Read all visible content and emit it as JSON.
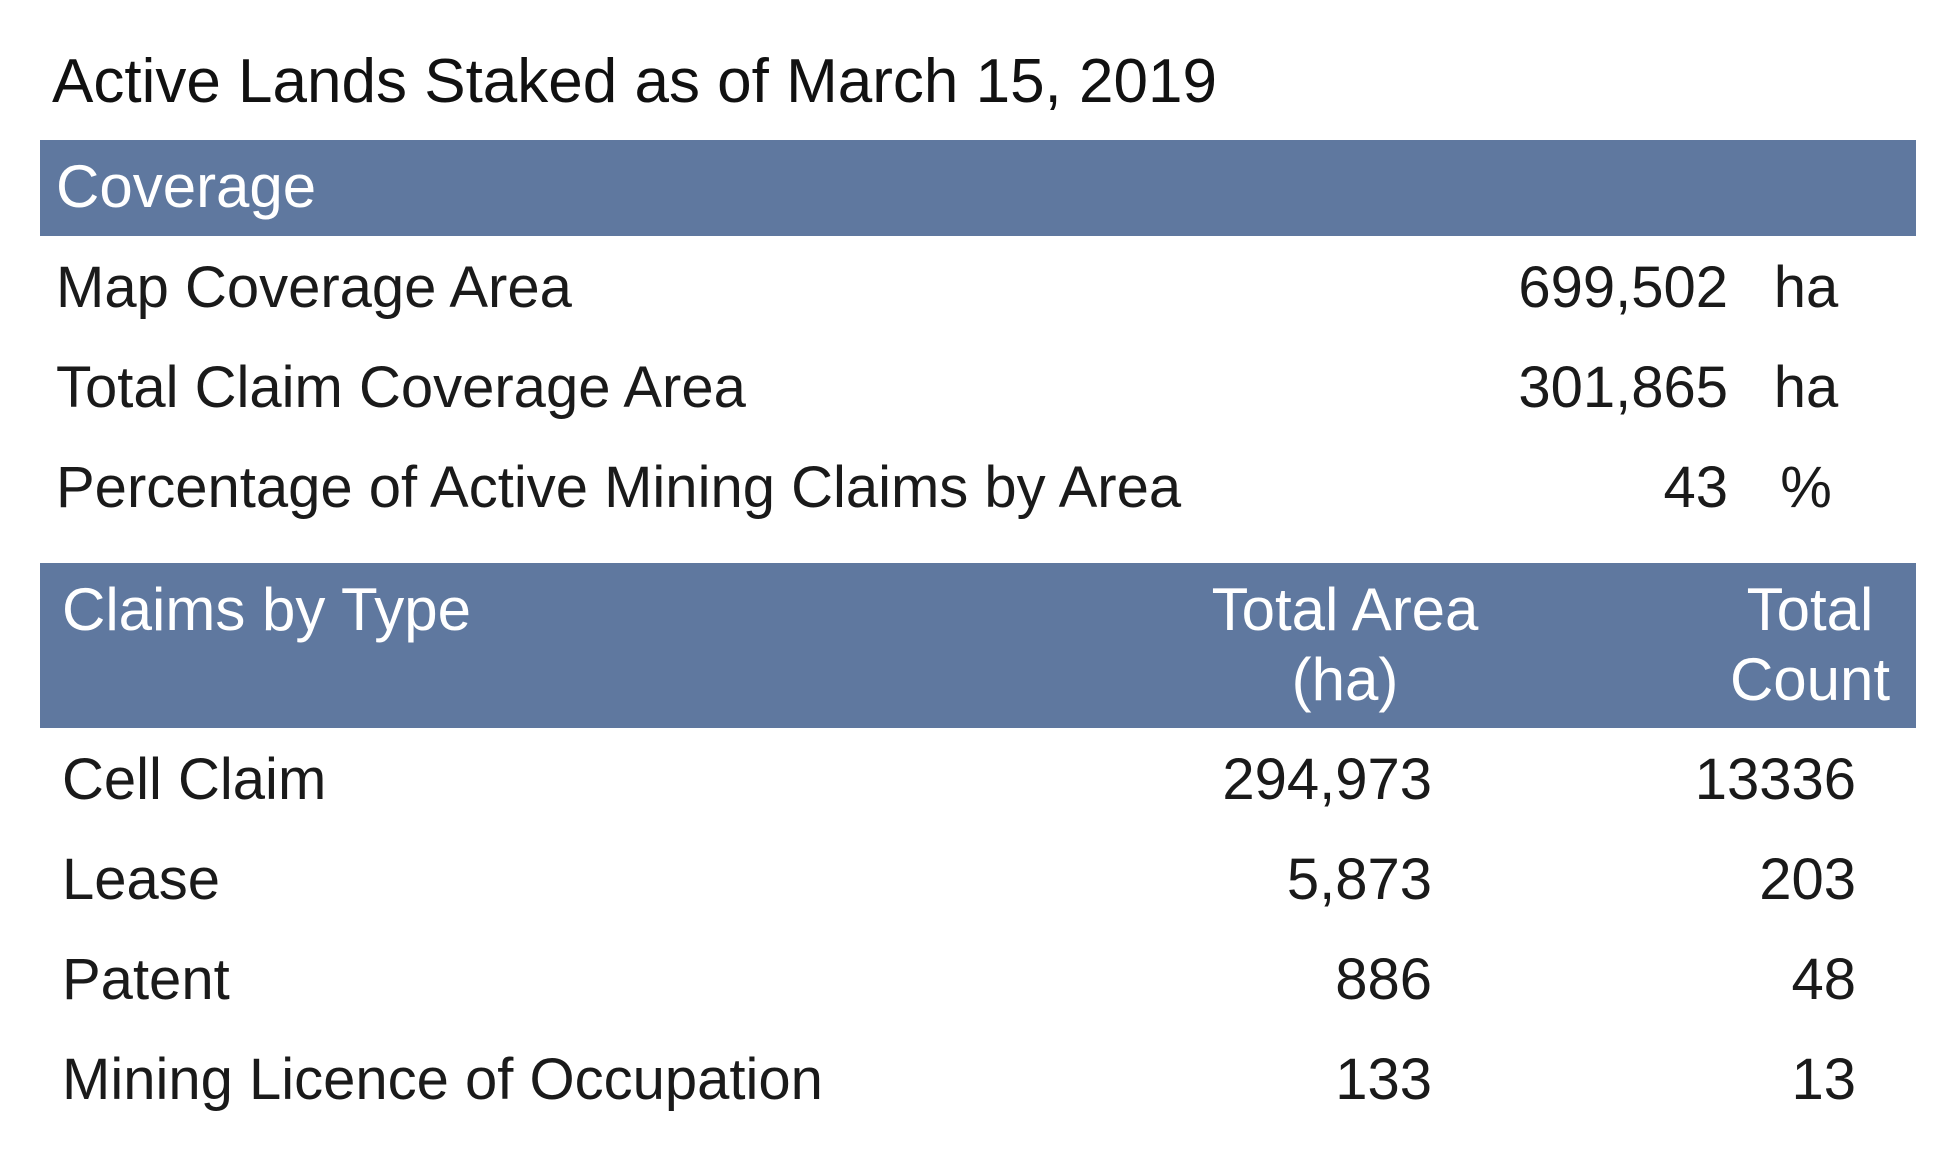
{
  "title": "Active Lands Staked as of March 15, 2019",
  "colors": {
    "header_band": "#5f789f",
    "header_text": "#ffffff",
    "body_text": "#1a1a1a"
  },
  "coverage": {
    "heading": "Coverage",
    "rows": [
      {
        "label": "Map Coverage Area",
        "value": "699,502",
        "unit": "ha"
      },
      {
        "label": "Total Claim Coverage Area",
        "value": "301,865",
        "unit": "ha"
      },
      {
        "label": "Percentage of Active Mining Claims by Area",
        "value": "43",
        "unit": "%"
      }
    ]
  },
  "claims_by_type": {
    "headers": {
      "type": "Claims by Type",
      "area": "Total Area\n(ha)",
      "count": "Total\nCount"
    },
    "rows": [
      {
        "name": "Cell Claim",
        "area": "294,973",
        "count": "13336"
      },
      {
        "name": "Lease",
        "area": "5,873",
        "count": "203"
      },
      {
        "name": "Patent",
        "area": "886",
        "count": "48"
      },
      {
        "name": "Mining Licence of Occupation",
        "area": "133",
        "count": "13"
      }
    ]
  }
}
